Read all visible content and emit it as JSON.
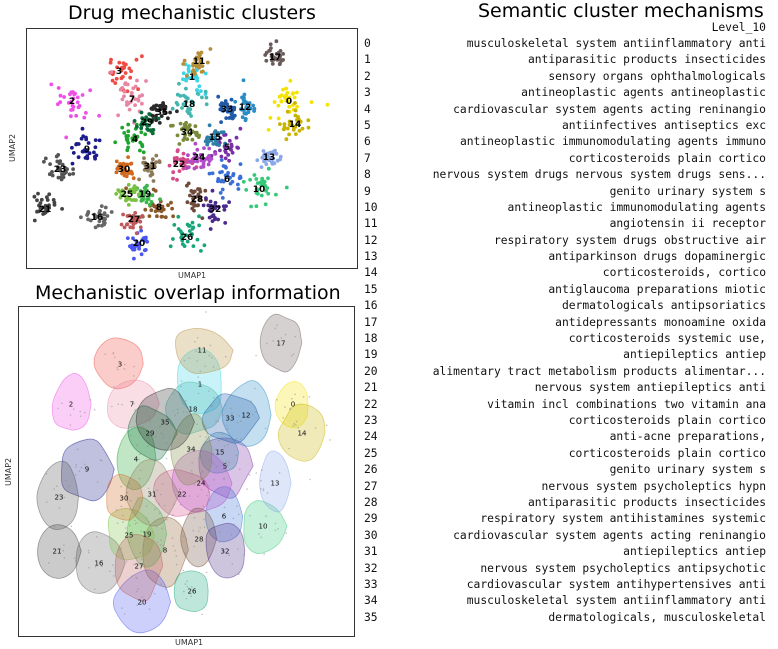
{
  "titles": {
    "top_left": "Drug mechanistic clusters",
    "bottom_left": "Mechanistic overlap information",
    "right": "Semantic cluster mechanisms"
  },
  "chart_data": [
    {
      "type": "scatter",
      "title": "Drug mechanistic clusters",
      "xlabel": "UMAP1",
      "ylabel": "UMAP2",
      "cluster_labels": [
        "0",
        "1",
        "2",
        "3",
        "4",
        "5",
        "6",
        "7",
        "8",
        "9",
        "10",
        "11",
        "12",
        "13",
        "14",
        "15",
        "16",
        "17",
        "18",
        "19",
        "20",
        "21",
        "22",
        "23",
        "24",
        "25",
        "26",
        "27",
        "28",
        "29",
        "30",
        "31",
        "32",
        "33",
        "34",
        "35"
      ],
      "grid": false
    },
    {
      "type": "scatter",
      "title": "Mechanistic overlap information",
      "xlabel": "UMAP1",
      "ylabel": "UMAP2",
      "cluster_labels": [
        "0",
        "1",
        "2",
        "3",
        "4",
        "5",
        "6",
        "7",
        "8",
        "9",
        "10",
        "11",
        "12",
        "13",
        "14",
        "15",
        "16",
        "17",
        "18",
        "19",
        "20",
        "21",
        "22",
        "23",
        "24",
        "25",
        "26",
        "27",
        "28",
        "29",
        "30",
        "31",
        "32",
        "33",
        "34",
        "35"
      ],
      "grid": false
    },
    {
      "type": "table",
      "title": "Semantic cluster mechanisms",
      "column": "Level_10",
      "index": [
        "0",
        "1",
        "2",
        "3",
        "4",
        "5",
        "6",
        "7",
        "8",
        "9",
        "10",
        "11",
        "12",
        "13",
        "14",
        "15",
        "16",
        "17",
        "18",
        "19",
        "20",
        "21",
        "22",
        "23",
        "24",
        "25",
        "26",
        "27",
        "28",
        "29",
        "30",
        "31",
        "32",
        "33",
        "34",
        "35"
      ],
      "rows": [
        "musculoskeletal system antiinflammatory anti",
        "antiparasitic products insecticides",
        "sensory organs ophthalmologicals",
        "antineoplastic agents antineoplastic",
        "cardiovascular system agents acting reninangio",
        "antiinfectives antiseptics exc",
        "antineoplastic immunomodulating agents immuno",
        "corticosteroids plain cortico",
        "nervous system drugs nervous system drugs sens...",
        "genito urinary system s",
        "antineoplastic immunomodulating agents",
        "angiotensin ii receptor",
        "respiratory system drugs obstructive air",
        "antiparkinson drugs dopaminergic",
        "corticosteroids, cortico",
        "antiglaucoma preparations miotic",
        "dermatologicals antipsoriatics",
        "antidepressants monoamine oxida",
        "corticosteroids systemic use,",
        "antiepileptics antiep",
        "alimentary tract metabolism products alimentar...",
        "nervous system antiepileptics anti",
        "vitamin incl combinations two vitamin ana",
        "corticosteroids plain cortico",
        "anti-acne preparations,",
        "corticosteroids plain cortico",
        "genito urinary system s",
        "nervous system psycholeptics hypn",
        "antiparasitic products insecticides",
        "respiratory system antihistamines systemic",
        "cardiovascular system agents acting reninangio",
        "antiepileptics antiep",
        "nervous system psycholeptics antipsychotic",
        "cardiovascular system antihypertensives anti",
        "musculoskeletal system antiinflammatory anti",
        "dermatologicals, musculoskeletal"
      ]
    }
  ],
  "colors": {
    "c0": "#f4e200",
    "c1": "#3bd5e6",
    "c2": "#f04fe6",
    "c3": "#ef4b42",
    "c4": "#1fa52f",
    "c5": "#7b2fa8",
    "c6": "#3a6fd6",
    "c7": "#e887a5",
    "c8": "#8b5a2b",
    "c9": "#1c1c8c",
    "c10": "#36c97a",
    "c11": "#b58e3a",
    "c12": "#2a8cc4",
    "c13": "#8aa8e8",
    "c14": "#c7b300",
    "c15": "#2d7fa8",
    "c16": "#666666",
    "c17": "#6b5a5a",
    "c18": "#45b7b0",
    "c19": "#3bb54a",
    "c20": "#4a56f0",
    "c21": "#444444",
    "c22": "#d44a8a",
    "c23": "#555555",
    "c24": "#b04cc8",
    "c25": "#7ac143",
    "c26": "#17a67a",
    "c27": "#bf5a5a",
    "c28": "#6e4b3a",
    "c29": "#0b6b3b",
    "c30": "#d2691e",
    "c31": "#8c7a5a",
    "c32": "#4a2a8a",
    "c33": "#1e5aa8",
    "c34": "#7a8a3a",
    "c35": "#2a2a2a"
  }
}
